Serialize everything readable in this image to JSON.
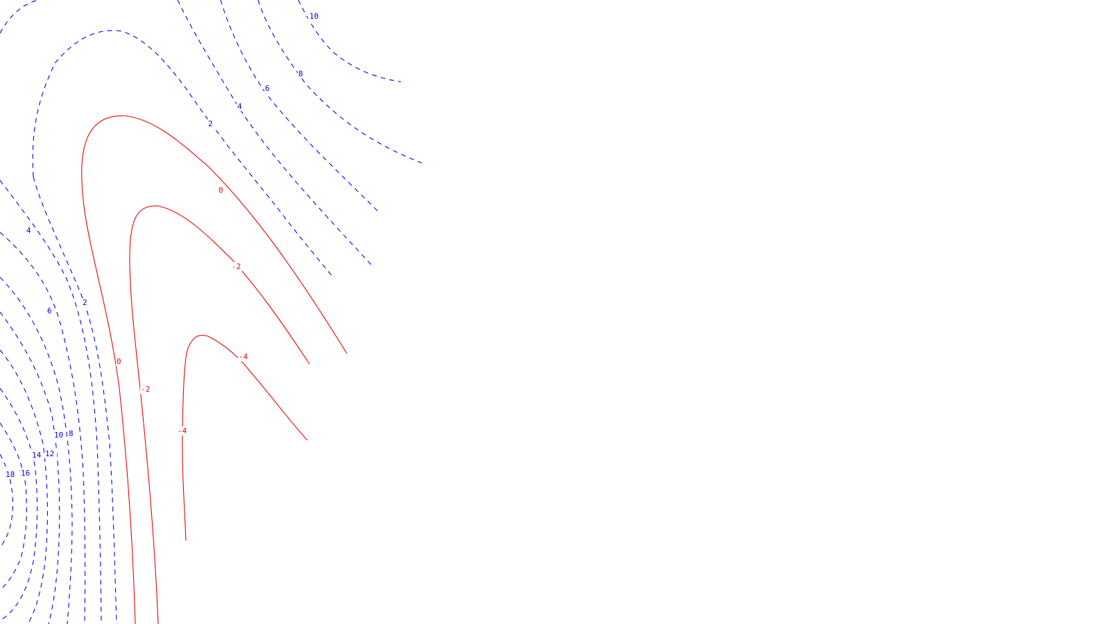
{
  "colors": {
    "positive": "#0000ee",
    "negative": "#ee0000",
    "background": "#ffffff"
  },
  "contours": {
    "positive_lines": [
      "2",
      "4",
      "6",
      "8",
      "10",
      "12",
      "14",
      "16",
      "18"
    ],
    "negative_lines": [
      "0",
      "-2",
      "-4"
    ]
  },
  "labels": {
    "top_10": "10",
    "top_8": "8",
    "top_6": "6",
    "top_4": "4",
    "top_2": "2",
    "zero_upper": "0",
    "minus2_upper": "-2",
    "minus4_upper": "-4",
    "left_4": "4",
    "left_2": "2",
    "left_6": "6",
    "zero_lower": "0",
    "minus2_lower": "-2",
    "minus4_lower": "-4",
    "left_10": "10",
    "left_8": "8",
    "left_14": "14",
    "left_12": "12",
    "left_18": "18",
    "left_16": "16"
  }
}
